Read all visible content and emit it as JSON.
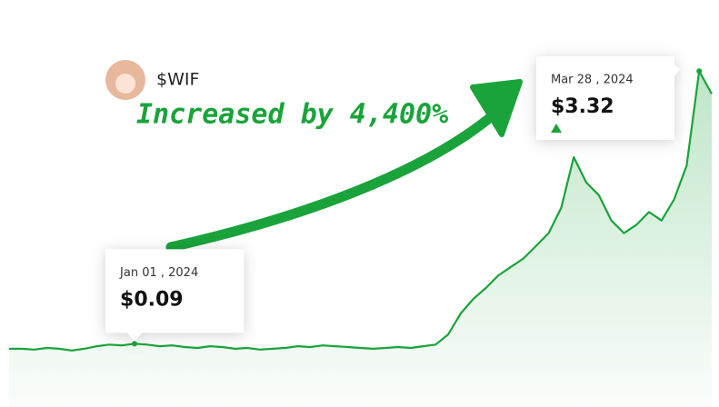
{
  "chart_data": {
    "type": "line",
    "title": "$WIF",
    "annotation": "Increased by 4,400%",
    "color": "#1aa33a",
    "values": [
      0.03,
      0.03,
      0.02,
      0.04,
      0.03,
      0.01,
      0.03,
      0.06,
      0.08,
      0.07,
      0.09,
      0.08,
      0.06,
      0.07,
      0.05,
      0.04,
      0.06,
      0.05,
      0.03,
      0.04,
      0.02,
      0.03,
      0.04,
      0.06,
      0.05,
      0.07,
      0.06,
      0.05,
      0.04,
      0.03,
      0.04,
      0.05,
      0.04,
      0.06,
      0.08,
      0.2,
      0.45,
      0.62,
      0.75,
      0.9,
      1.0,
      1.1,
      1.25,
      1.4,
      1.7,
      2.3,
      2.0,
      1.85,
      1.55,
      1.4,
      1.5,
      1.65,
      1.55,
      1.8,
      2.2,
      3.32,
      3.05
    ],
    "ylim": [
      -0.66,
      3.84
    ],
    "callouts": [
      {
        "date": "Jan 01 , 2024",
        "value": 0.09,
        "value_label": "$0.09"
      },
      {
        "date": "Mar 28 , 2024",
        "value": 3.32,
        "value_label": "$3.32"
      }
    ]
  }
}
